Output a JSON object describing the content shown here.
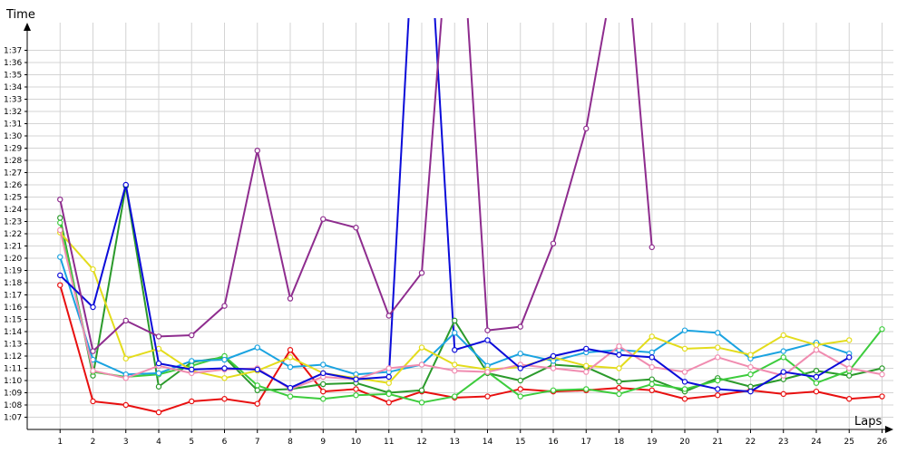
{
  "chart_data": {
    "type": "line",
    "title": "",
    "xlabel": "Laps",
    "ylabel": "Time",
    "x": [
      1,
      2,
      3,
      4,
      5,
      6,
      7,
      8,
      9,
      10,
      11,
      12,
      13,
      14,
      15,
      16,
      17,
      18,
      19,
      20,
      21,
      22,
      23,
      24,
      25,
      26
    ],
    "xlim": [
      0,
      26
    ],
    "ylim": [
      66,
      98.5
    ],
    "y_ticks": [
      67,
      68,
      69,
      70,
      71,
      72,
      73,
      74,
      75,
      76,
      77,
      78,
      79,
      80,
      81,
      82,
      83,
      84,
      85,
      86,
      87,
      88,
      89,
      90,
      91,
      92,
      93,
      94,
      95,
      96,
      97
    ],
    "y_tick_labels": [
      "1:07",
      "1:08",
      "1:09",
      "1:10",
      "1:11",
      "1:12",
      "1:13",
      "1:14",
      "1:15",
      "1:16",
      "1:17",
      "1:18",
      "1:19",
      "1:20",
      "1:21",
      "1:22",
      "1:23",
      "1:24",
      "1:25",
      "1:26",
      "1:27",
      "1:28",
      "1:29",
      "1:30",
      "1:31",
      "1:32",
      "1:33",
      "1:34",
      "1:35",
      "1:36",
      "1:37"
    ],
    "grid": true,
    "series": [
      {
        "color": "#e81010",
        "values": [
          77.8,
          68.3,
          68.0,
          67.4,
          68.3,
          68.5,
          68.1,
          72.5,
          69.1,
          69.3,
          68.2,
          69.1,
          68.6,
          68.7,
          69.3,
          69.1,
          69.2,
          69.4,
          69.2,
          68.5,
          68.8,
          69.2,
          68.9,
          69.1,
          68.5,
          68.7
        ]
      },
      {
        "color": "#2b9a2b",
        "values": [
          83.3,
          70.4,
          85.9,
          69.5,
          71.5,
          71.9,
          69.2,
          69.3,
          69.7,
          69.8,
          69.0,
          69.2,
          74.9,
          70.6,
          70.0,
          71.3,
          71.1,
          69.9,
          70.1,
          69.1,
          70.2,
          69.5,
          70.1,
          70.8,
          70.4,
          71.0
        ]
      },
      {
        "color": "#3dcc3d",
        "values": [
          82.9,
          70.7,
          70.3,
          70.5,
          71.2,
          72.0,
          69.6,
          68.7,
          68.5,
          68.8,
          68.9,
          68.2,
          68.7,
          70.7,
          68.7,
          69.2,
          69.3,
          68.9,
          69.7,
          69.3,
          70.0,
          70.5,
          71.9,
          69.8,
          70.8,
          74.2
        ]
      },
      {
        "color": "#1aa3e0",
        "values": [
          80.1,
          71.7,
          70.5,
          70.6,
          71.6,
          71.7,
          72.7,
          71.1,
          71.3,
          70.5,
          70.7,
          71.3,
          73.9,
          71.2,
          72.2,
          71.6,
          72.3,
          72.5,
          72.3,
          74.1,
          73.9,
          71.8,
          72.4,
          73.1,
          72.2,
          null
        ]
      },
      {
        "color": "#e3dc1c",
        "values": [
          82.1,
          79.1,
          71.8,
          72.6,
          70.8,
          70.2,
          70.8,
          71.9,
          70.6,
          70.2,
          69.8,
          72.7,
          71.3,
          70.9,
          71.1,
          71.9,
          71.2,
          71.0,
          73.6,
          72.6,
          72.7,
          72.1,
          73.7,
          72.9,
          73.3,
          null
        ]
      },
      {
        "color": "#f08cb0",
        "values": [
          82.3,
          70.8,
          70.2,
          71.2,
          70.6,
          70.9,
          71.0,
          69.3,
          70.3,
          70.1,
          71.0,
          71.3,
          70.8,
          70.7,
          71.3,
          71.0,
          70.7,
          72.8,
          71.1,
          70.7,
          71.9,
          71.1,
          70.4,
          72.5,
          71.0,
          70.5
        ]
      },
      {
        "color": "#0b0bd9",
        "values": [
          78.6,
          76.0,
          86.0,
          71.4,
          70.9,
          71.0,
          70.9,
          69.4,
          70.6,
          70.1,
          70.3,
          null,
          72.5,
          73.3,
          71.0,
          72.0,
          72.6,
          72.1,
          71.9,
          69.9,
          69.3,
          69.1,
          70.7,
          70.3,
          71.9,
          null
        ]
      },
      {
        "color": "#8e2c8e",
        "values": [
          84.8,
          72.4,
          74.9,
          73.6,
          73.7,
          76.1,
          88.8,
          76.7,
          83.2,
          82.5,
          75.3,
          78.8,
          null,
          74.1,
          74.4,
          81.2,
          90.6,
          null,
          80.9,
          null,
          null,
          null,
          null,
          null,
          null,
          null
        ]
      }
    ],
    "off_chart_segments": [
      {
        "color": "#0b0bd9",
        "from_x": 11,
        "to_x": 13
      },
      {
        "color": "#8e2c8e",
        "from_x": 12,
        "to_x": 14
      },
      {
        "color": "#8e2c8e",
        "from_x": 17,
        "to_x": 19
      }
    ]
  }
}
